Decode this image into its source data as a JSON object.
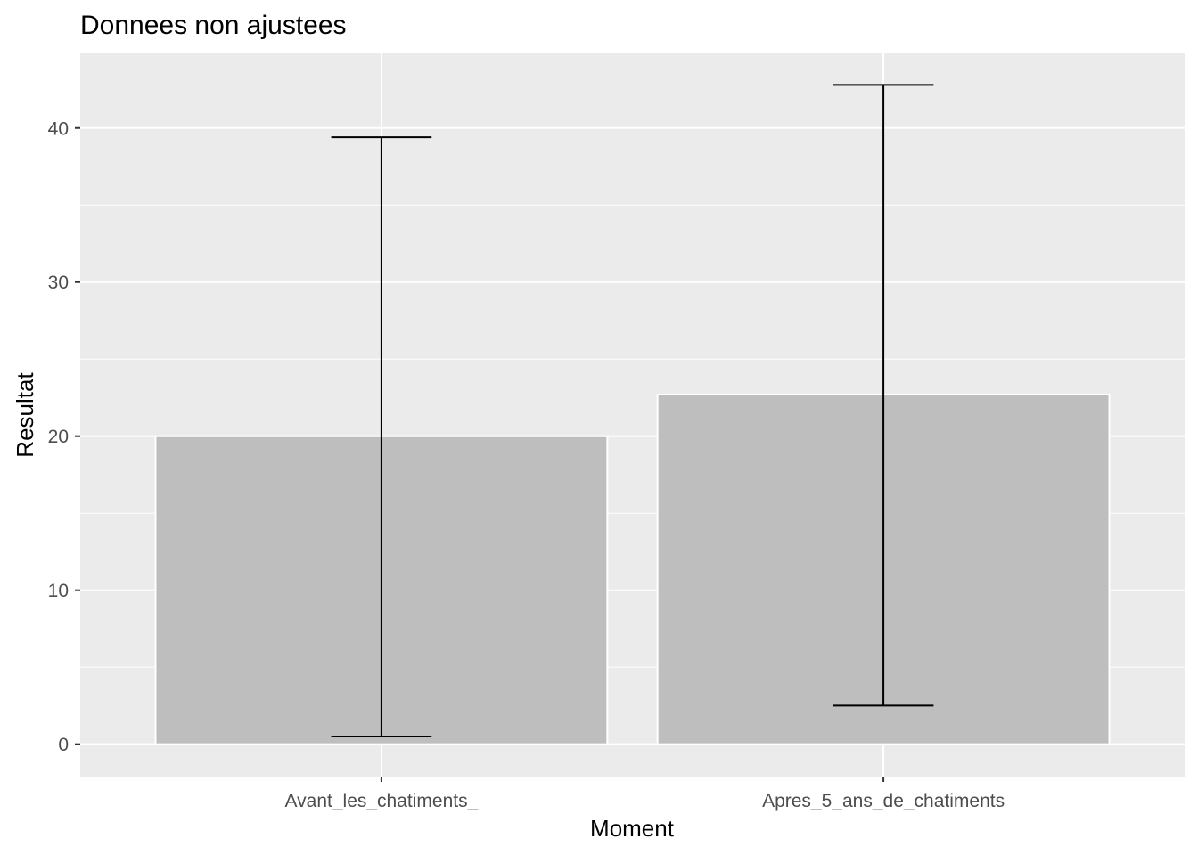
{
  "chart_data": {
    "type": "bar",
    "title": "Donnees non ajustees",
    "xlabel": "Moment",
    "ylabel": "Resultat",
    "categories": [
      "Avant_les_chatiments_",
      "Apres_5_ans_de_chatiments"
    ],
    "values": [
      20.0,
      22.7
    ],
    "error_bars": [
      {
        "low": 0.5,
        "high": 39.4
      },
      {
        "low": 2.5,
        "high": 42.8
      }
    ],
    "ylim": [
      -2.1,
      44.9
    ],
    "yticks": [
      0,
      10,
      20,
      30,
      40
    ],
    "grid": true,
    "legend": "none",
    "colors": {
      "panel": "#ebebeb",
      "grid_major": "#ffffff",
      "bar_fill": "#bebebe",
      "bar_outline": "#ffffff",
      "errorbar": "#000000",
      "tick_text": "#4d4d4d"
    }
  }
}
